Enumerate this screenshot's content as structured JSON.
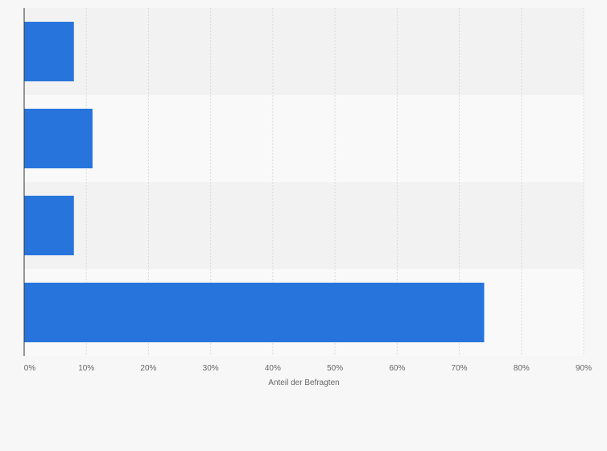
{
  "chart_data": {
    "type": "bar",
    "orientation": "horizontal",
    "categories": [
      "",
      "",
      "",
      ""
    ],
    "values": [
      8,
      11,
      8,
      74
    ],
    "unit": "%",
    "title": "",
    "xlabel": "Anteil der Befragten",
    "ylabel": "",
    "xlim": [
      0,
      90
    ],
    "xticks": [
      "0%",
      "10%",
      "20%",
      "30%",
      "40%",
      "50%",
      "60%",
      "70%",
      "80%",
      "90%"
    ],
    "grid": true,
    "legend": "none",
    "colors": {
      "bar": "#2775dc",
      "band_dark": "#f2f2f2",
      "band_light": "#f9f9f9",
      "background": "#f7f7f7",
      "grid": "#d9d9d9",
      "axis": "#333333",
      "text": "#666666"
    }
  }
}
